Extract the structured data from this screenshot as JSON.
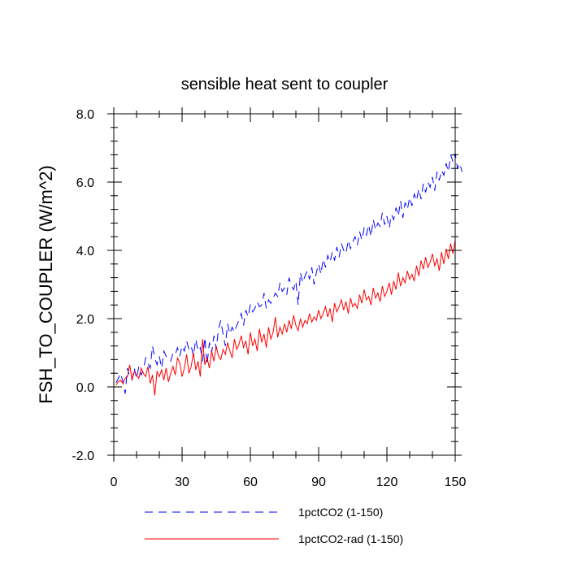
{
  "chart_data": {
    "type": "line",
    "title": "sensible heat sent to coupler",
    "xlabel": "",
    "ylabel": "FSH_TO_COUPLER  (W/m^2)",
    "xlim": [
      0,
      150
    ],
    "ylim": [
      -2,
      8
    ],
    "xticks": [
      0,
      30,
      60,
      90,
      120,
      150
    ],
    "xtick_labels": [
      "0",
      "30",
      "60",
      "90",
      "120",
      "150"
    ],
    "yticks": [
      -2,
      0,
      2,
      4,
      6,
      8
    ],
    "ytick_labels": [
      "-2.0",
      "0.0",
      "2.0",
      "4.0",
      "6.0",
      "8.0"
    ],
    "grid": false,
    "legend_position": "bottom",
    "series": [
      {
        "name": "1pctCO2 (1-150)",
        "color": "#0000ff",
        "dash": "dashed",
        "values": [
          0.12,
          0.25,
          0.4,
          0.15,
          -0.2,
          0.55,
          0.3,
          0.2,
          0.55,
          0.25,
          0.6,
          0.35,
          0.5,
          0.85,
          0.7,
          0.55,
          1.2,
          0.85,
          0.65,
          0.9,
          0.55,
          1.05,
          0.9,
          0.8,
          0.75,
          1.0,
          0.95,
          1.15,
          0.9,
          1.2,
          1.05,
          1.35,
          1.1,
          1.2,
          0.9,
          1.4,
          1.05,
          1.15,
          0.75,
          1.45,
          0.65,
          1.3,
          1.0,
          1.5,
          1.1,
          1.7,
          1.95,
          1.55,
          1.2,
          1.85,
          1.55,
          1.75,
          1.6,
          1.8,
          1.95,
          2.15,
          1.8,
          2.25,
          2.05,
          2.4,
          2.2,
          2.3,
          2.5,
          2.35,
          2.4,
          2.75,
          2.3,
          2.55,
          2.45,
          2.6,
          2.75,
          2.65,
          3.05,
          2.8,
          2.9,
          2.7,
          3.2,
          2.95,
          2.85,
          3.1,
          2.4,
          3.35,
          3.05,
          3.25,
          3.4,
          3.15,
          3.5,
          3.0,
          3.35,
          3.6,
          3.3,
          3.75,
          3.5,
          3.85,
          3.65,
          3.95,
          3.7,
          4.1,
          3.8,
          4.2,
          4.0,
          3.9,
          4.3,
          4.05,
          4.25,
          4.4,
          4.15,
          4.55,
          4.3,
          4.65,
          4.45,
          4.75,
          4.4,
          4.9,
          4.6,
          4.8,
          4.7,
          5.1,
          4.75,
          5.0,
          4.65,
          5.05,
          4.9,
          5.25,
          5.0,
          5.45,
          4.95,
          5.4,
          5.2,
          5.55,
          5.3,
          5.65,
          5.45,
          5.8,
          5.5,
          5.95,
          5.7,
          6.0,
          5.85,
          6.15,
          5.75,
          6.3,
          6.05,
          6.35,
          6.2,
          6.55,
          6.3,
          6.8,
          6.6,
          6.85,
          6.4,
          6.55,
          6.3
        ]
      },
      {
        "name": "1pctCO2-rad (1-150)",
        "color": "#ff0000",
        "dash": "solid",
        "values": [
          0.05,
          0.15,
          0.2,
          0.1,
          0.25,
          0.3,
          0.65,
          0.2,
          0.45,
          0.35,
          0.25,
          0.55,
          0.4,
          0.3,
          0.6,
          0.1,
          0.35,
          -0.25,
          0.45,
          0.3,
          0.5,
          0.2,
          0.55,
          0.15,
          0.4,
          0.6,
          0.35,
          0.85,
          0.7,
          0.3,
          0.55,
          0.95,
          0.4,
          0.6,
          1.0,
          0.5,
          0.75,
          0.3,
          1.4,
          0.65,
          0.85,
          0.55,
          1.05,
          0.75,
          1.2,
          0.9,
          0.8,
          1.1,
          0.95,
          1.3,
          1.05,
          0.85,
          1.4,
          1.1,
          1.25,
          1.5,
          1.15,
          1.35,
          0.95,
          1.6,
          1.2,
          1.4,
          1.05,
          1.7,
          1.3,
          1.55,
          1.15,
          1.75,
          1.4,
          1.6,
          2.05,
          1.45,
          1.75,
          1.55,
          1.85,
          1.6,
          1.95,
          1.7,
          2.1,
          1.8,
          1.65,
          2.0,
          1.75,
          1.95,
          1.85,
          2.15,
          1.9,
          2.05,
          1.95,
          2.25,
          2.0,
          2.15,
          2.35,
          2.05,
          2.3,
          1.9,
          2.45,
          2.2,
          2.35,
          2.55,
          2.25,
          2.5,
          2.15,
          2.6,
          2.35,
          2.45,
          2.3,
          2.7,
          2.45,
          2.85,
          2.55,
          2.65,
          2.4,
          2.9,
          2.6,
          2.75,
          2.5,
          2.95,
          2.65,
          2.8,
          3.05,
          2.7,
          3.1,
          2.85,
          3.35,
          2.95,
          3.2,
          3.05,
          3.4,
          3.15,
          3.3,
          3.1,
          3.55,
          3.25,
          3.7,
          3.45,
          3.8,
          3.5,
          3.65,
          3.9,
          3.55,
          3.75,
          3.4,
          3.95,
          3.6,
          4.05,
          3.75,
          4.2,
          3.9,
          4.3
        ]
      }
    ]
  }
}
